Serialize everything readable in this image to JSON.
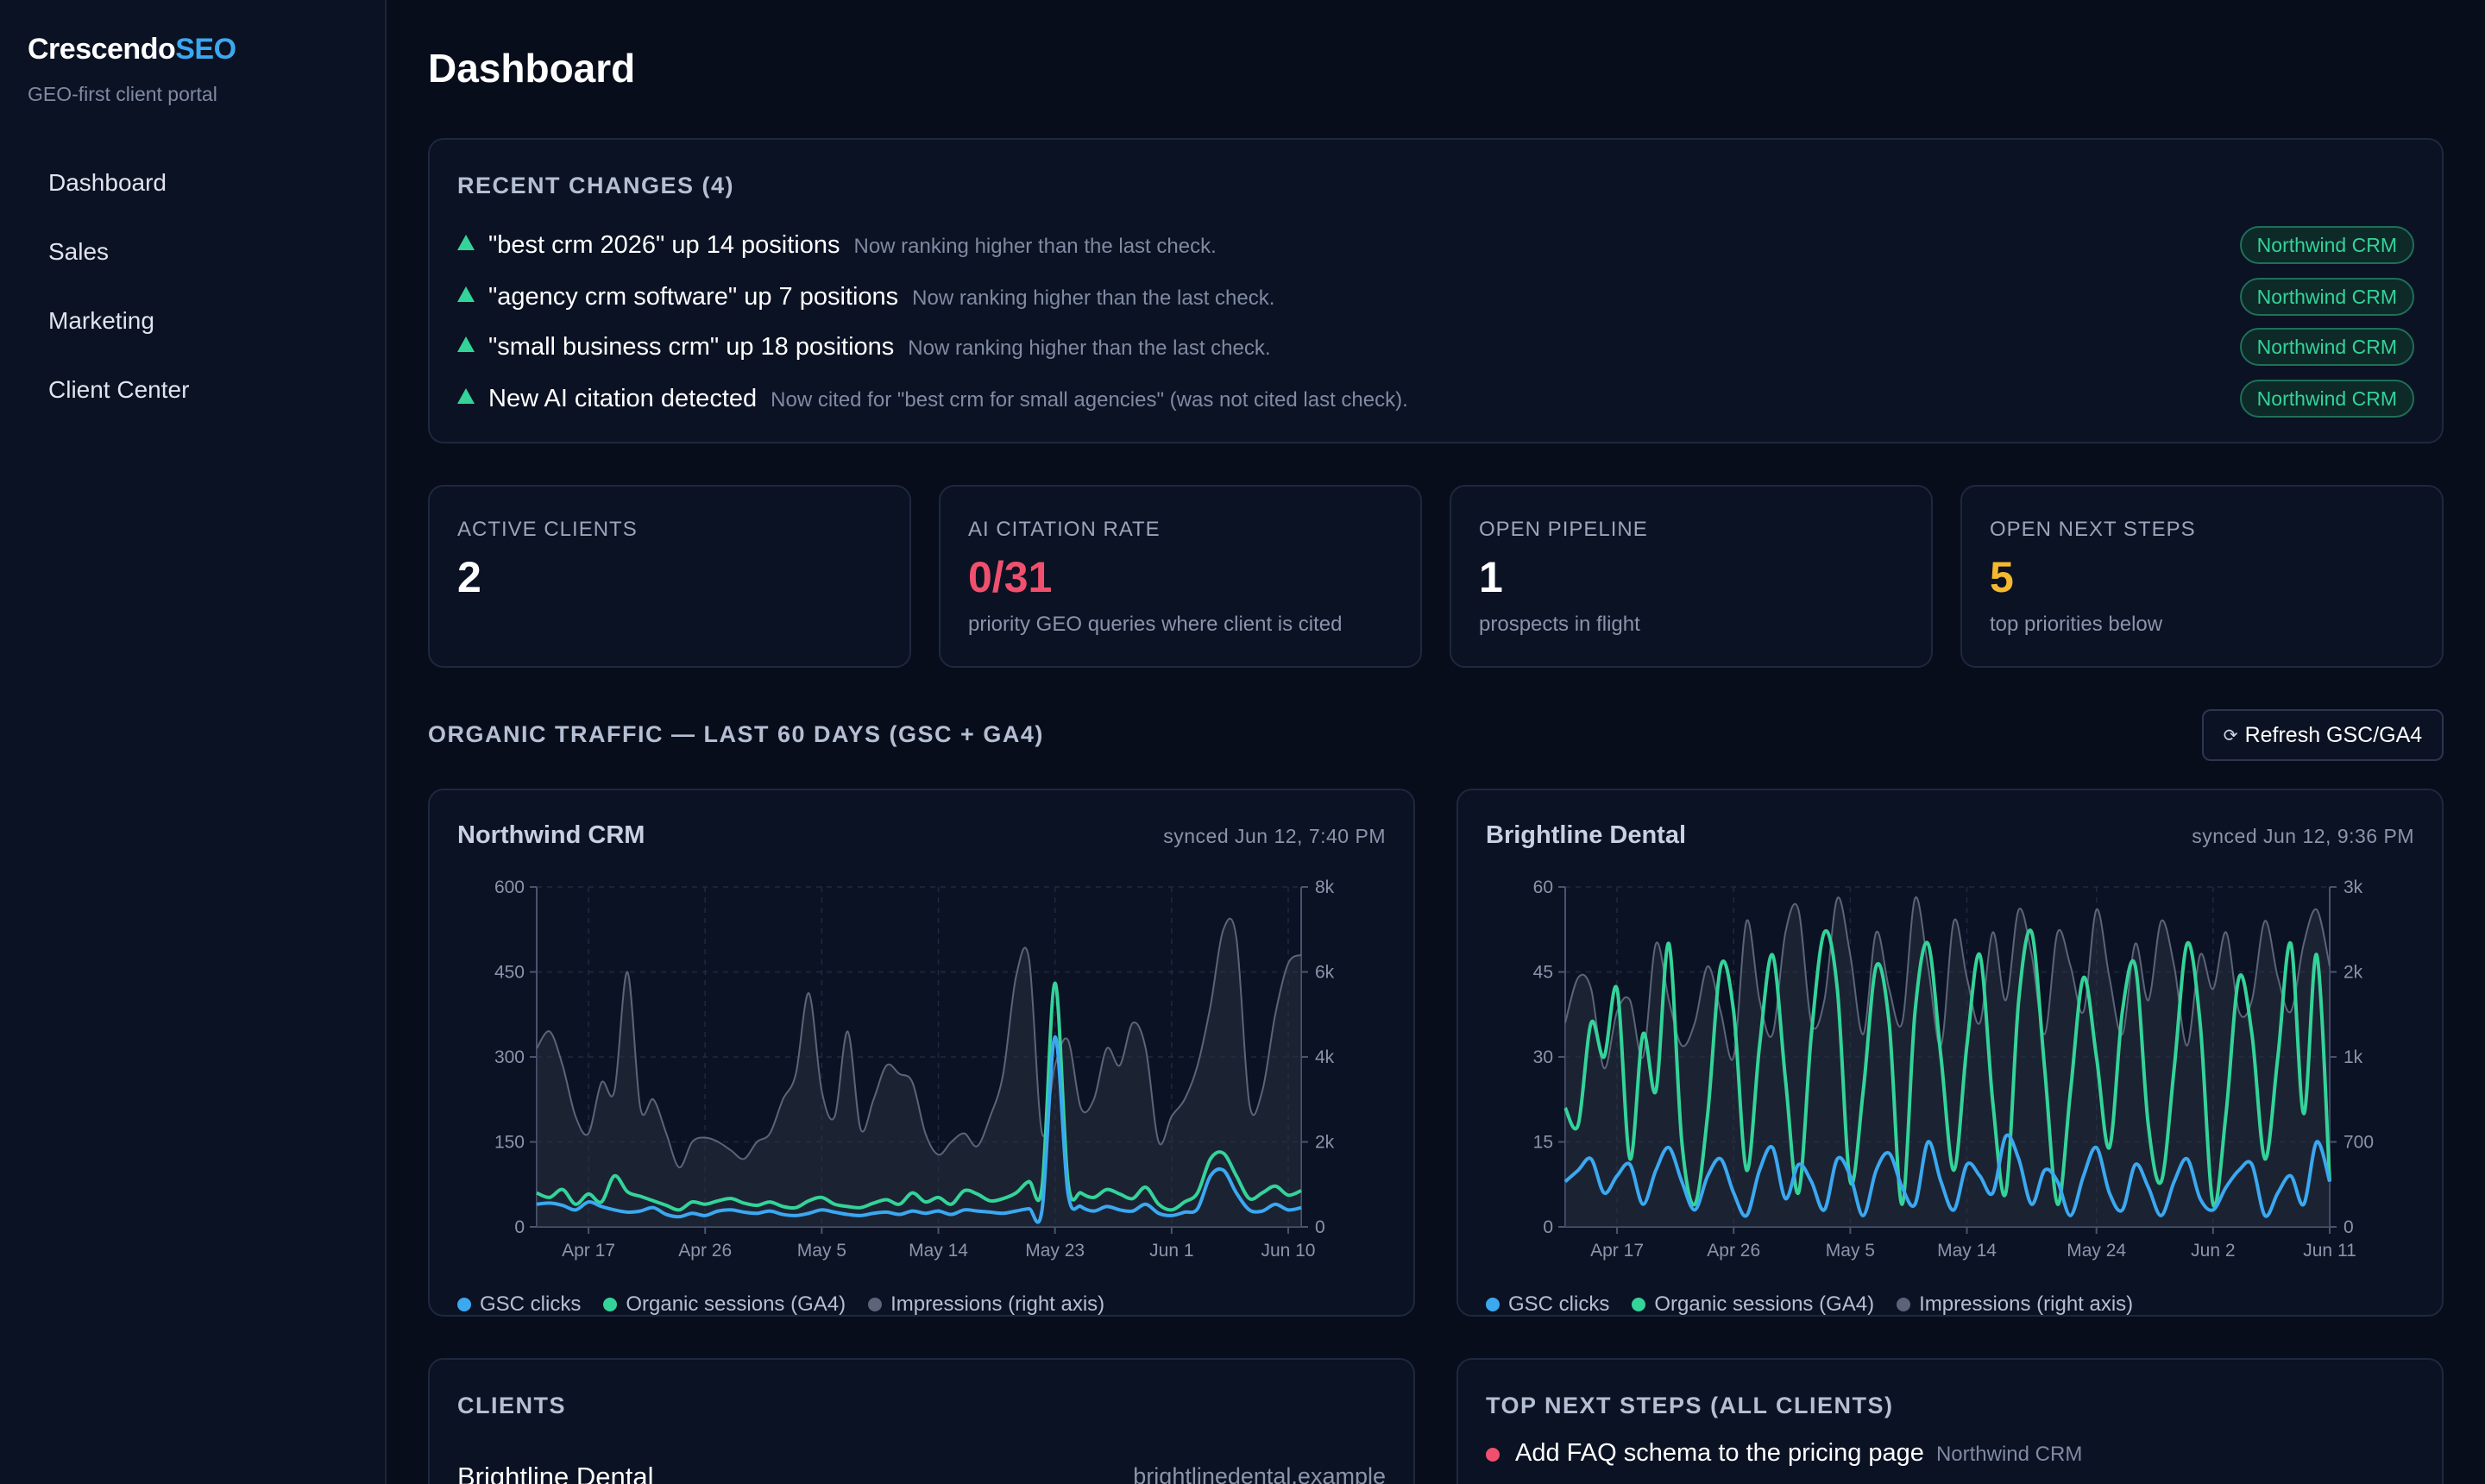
{
  "brand": {
    "name_primary": "Crescendo",
    "name_accent": "SEO",
    "tagline": "GEO-first client portal",
    "accent_color": "#3ba8f0"
  },
  "nav": {
    "items": [
      {
        "label": "Dashboard"
      },
      {
        "label": "Sales"
      },
      {
        "label": "Marketing"
      },
      {
        "label": "Client Center"
      }
    ]
  },
  "page": {
    "title": "Dashboard"
  },
  "recent_changes": {
    "title": "RECENT CHANGES (4)",
    "items": [
      {
        "icon": "up-triangle-icon",
        "title": "\"best crm 2026\" up 14 positions",
        "desc": "Now ranking higher than the last check.",
        "client": "Northwind CRM"
      },
      {
        "icon": "up-triangle-icon",
        "title": "\"agency crm software\" up 7 positions",
        "desc": "Now ranking higher than the last check.",
        "client": "Northwind CRM"
      },
      {
        "icon": "up-triangle-icon",
        "title": "\"small business crm\" up 18 positions",
        "desc": "Now ranking higher than the last check.",
        "client": "Northwind CRM"
      },
      {
        "icon": "up-triangle-icon",
        "title": "New AI citation detected",
        "desc": "Now cited for \"best crm for small agencies\" (was not cited last check).",
        "client": "Northwind CRM"
      }
    ]
  },
  "stats": [
    {
      "label": "ACTIVE CLIENTS",
      "value": "2",
      "sub": "",
      "color": "#ffffff"
    },
    {
      "label": "AI CITATION RATE",
      "value": "0/31",
      "sub": "priority GEO queries where client is cited",
      "color": "#f0506e"
    },
    {
      "label": "OPEN PIPELINE",
      "value": "1",
      "sub": "prospects in flight",
      "color": "#ffffff"
    },
    {
      "label": "OPEN NEXT STEPS",
      "value": "5",
      "sub": "top priorities below",
      "color": "#f5b82e"
    }
  ],
  "traffic": {
    "title": "ORGANIC TRAFFIC — LAST 60 DAYS (GSC + GA4)",
    "refresh_label": "Refresh GSC/GA4",
    "refresh_icon": "refresh-icon"
  },
  "colors": {
    "gsc": "#3ba8f0",
    "ga4": "#34d399",
    "impressions": "#5b6478"
  },
  "charts": [
    {
      "name": "Northwind CRM",
      "synced": "synced Jun 12, 7:40 PM",
      "legend": [
        "GSC clicks",
        "Organic sessions (GA4)",
        "Impressions (right axis)"
      ]
    },
    {
      "name": "Brightline Dental",
      "synced": "synced Jun 12, 9:36 PM",
      "legend": [
        "GSC clicks",
        "Organic sessions (GA4)",
        "Impressions (right axis)"
      ]
    }
  ],
  "chart_data": [
    {
      "type": "line",
      "title": "Northwind CRM",
      "x": [
        "Apr 13",
        "Apr 14",
        "Apr 15",
        "Apr 16",
        "Apr 17",
        "Apr 18",
        "Apr 19",
        "Apr 20",
        "Apr 21",
        "Apr 22",
        "Apr 23",
        "Apr 24",
        "Apr 25",
        "Apr 26",
        "Apr 27",
        "Apr 28",
        "Apr 29",
        "Apr 30",
        "May 1",
        "May 2",
        "May 3",
        "May 4",
        "May 5",
        "May 6",
        "May 7",
        "May 8",
        "May 9",
        "May 10",
        "May 11",
        "May 12",
        "May 13",
        "May 14",
        "May 15",
        "May 16",
        "May 17",
        "May 18",
        "May 19",
        "May 20",
        "May 21",
        "May 22",
        "May 23",
        "May 24",
        "May 25",
        "May 26",
        "May 27",
        "May 28",
        "May 29",
        "May 30",
        "May 31",
        "Jun 1",
        "Jun 2",
        "Jun 3",
        "Jun 4",
        "Jun 5",
        "Jun 6",
        "Jun 7",
        "Jun 8",
        "Jun 9",
        "Jun 10",
        "Jun 11"
      ],
      "x_ticks": [
        "Apr 17",
        "Apr 26",
        "May 5",
        "May 14",
        "May 23",
        "Jun 1",
        "Jun 10"
      ],
      "ylim": [
        0,
        600
      ],
      "y_ticks": [
        0,
        150,
        300,
        450,
        600
      ],
      "y2lim": [
        0,
        8000
      ],
      "y2_ticks": [
        "0",
        "2k",
        "4k",
        "6k",
        "8k"
      ],
      "series": [
        {
          "name": "GSC clicks",
          "axis": "left",
          "values": [
            40,
            42,
            38,
            30,
            44,
            36,
            30,
            26,
            28,
            34,
            22,
            18,
            24,
            20,
            28,
            30,
            26,
            24,
            28,
            22,
            20,
            24,
            30,
            26,
            22,
            20,
            24,
            26,
            22,
            28,
            24,
            28,
            22,
            30,
            28,
            26,
            24,
            28,
            32,
            30,
            335,
            60,
            36,
            28,
            36,
            30,
            28,
            40,
            24,
            20,
            26,
            32,
            90,
            100,
            60,
            30,
            28,
            40,
            30,
            34
          ]
        },
        {
          "name": "Organic sessions (GA4)",
          "axis": "left",
          "values": [
            60,
            52,
            66,
            40,
            58,
            44,
            90,
            62,
            54,
            46,
            38,
            30,
            44,
            40,
            46,
            50,
            42,
            38,
            44,
            36,
            34,
            46,
            52,
            40,
            36,
            34,
            42,
            48,
            40,
            60,
            44,
            52,
            40,
            64,
            58,
            46,
            50,
            60,
            80,
            70,
            430,
            80,
            60,
            52,
            66,
            58,
            50,
            70,
            40,
            30,
            44,
            60,
            120,
            130,
            90,
            50,
            60,
            72,
            56,
            64
          ]
        },
        {
          "name": "Impressions (right axis)",
          "axis": "right",
          "values": [
            4200,
            4600,
            3800,
            2600,
            2200,
            3400,
            3200,
            6000,
            2800,
            3000,
            2200,
            1400,
            2000,
            2100,
            2000,
            1800,
            1600,
            2000,
            2200,
            3000,
            3600,
            5500,
            3200,
            2600,
            4600,
            2300,
            3000,
            3800,
            3600,
            3400,
            2200,
            1700,
            2000,
            2200,
            1900,
            2600,
            3600,
            5900,
            6300,
            2200,
            3800,
            4400,
            2800,
            3000,
            4200,
            3800,
            4800,
            4200,
            2000,
            2600,
            3000,
            3800,
            5200,
            7000,
            6800,
            2900,
            3200,
            5000,
            6200,
            6400
          ]
        }
      ]
    },
    {
      "type": "line",
      "title": "Brightline Dental",
      "x": [
        "Apr 13",
        "Apr 14",
        "Apr 15",
        "Apr 16",
        "Apr 17",
        "Apr 18",
        "Apr 19",
        "Apr 20",
        "Apr 21",
        "Apr 22",
        "Apr 23",
        "Apr 24",
        "Apr 25",
        "Apr 26",
        "Apr 27",
        "Apr 28",
        "Apr 29",
        "Apr 30",
        "May 1",
        "May 2",
        "May 3",
        "May 4",
        "May 5",
        "May 6",
        "May 7",
        "May 8",
        "May 9",
        "May 10",
        "May 11",
        "May 12",
        "May 13",
        "May 14",
        "May 15",
        "May 16",
        "May 17",
        "May 18",
        "May 19",
        "May 20",
        "May 21",
        "May 22",
        "May 23",
        "May 24",
        "May 25",
        "May 26",
        "May 27",
        "May 28",
        "May 29",
        "May 30",
        "May 31",
        "Jun 1",
        "Jun 2",
        "Jun 3",
        "Jun 4",
        "Jun 5",
        "Jun 6",
        "Jun 7",
        "Jun 8",
        "Jun 9",
        "Jun 10",
        "Jun 11"
      ],
      "x_ticks": [
        "Apr 17",
        "Apr 26",
        "May 5",
        "May 14",
        "May 24",
        "Jun 2",
        "Jun 11"
      ],
      "ylim": [
        0,
        60
      ],
      "y_ticks": [
        0,
        15,
        30,
        45,
        60
      ],
      "y2lim": [
        0,
        3000
      ],
      "y2_ticks": [
        "0",
        "700",
        "1k",
        "2k",
        "3k"
      ],
      "series": [
        {
          "name": "GSC clicks",
          "axis": "left",
          "values": [
            8,
            10,
            12,
            6,
            9,
            11,
            4,
            10,
            14,
            8,
            3,
            9,
            12,
            6,
            2,
            10,
            14,
            5,
            11,
            8,
            3,
            12,
            9,
            2,
            10,
            13,
            7,
            4,
            15,
            8,
            3,
            11,
            9,
            6,
            16,
            12,
            4,
            10,
            8,
            2,
            9,
            14,
            6,
            3,
            11,
            7,
            2,
            8,
            12,
            5,
            3,
            7,
            10,
            11,
            2,
            6,
            9,
            4,
            15,
            8
          ]
        },
        {
          "name": "Organic sessions (GA4)",
          "axis": "left",
          "values": [
            21,
            18,
            36,
            30,
            42,
            12,
            34,
            24,
            50,
            15,
            4,
            20,
            46,
            38,
            10,
            32,
            48,
            26,
            6,
            34,
            52,
            42,
            8,
            24,
            46,
            36,
            4,
            38,
            50,
            30,
            10,
            32,
            48,
            22,
            6,
            40,
            52,
            28,
            4,
            24,
            44,
            30,
            14,
            38,
            46,
            18,
            8,
            28,
            50,
            36,
            4,
            20,
            44,
            34,
            12,
            30,
            50,
            20,
            48,
            8
          ]
        },
        {
          "name": "Impressions (right axis)",
          "axis": "right",
          "values": [
            1800,
            2200,
            2100,
            1400,
            1900,
            2000,
            1500,
            2500,
            2000,
            1600,
            1800,
            2300,
            1900,
            1500,
            2700,
            2000,
            1700,
            2600,
            2800,
            1800,
            2000,
            2900,
            2400,
            1700,
            2600,
            2100,
            1800,
            2900,
            2300,
            1600,
            2700,
            2200,
            1800,
            2600,
            2000,
            2800,
            2400,
            1700,
            2600,
            2300,
            1900,
            2800,
            2200,
            1700,
            2500,
            2000,
            2700,
            2300,
            1600,
            2400,
            2100,
            2600,
            1900,
            2000,
            2700,
            2200,
            1900,
            2500,
            2800,
            2300
          ]
        }
      ]
    }
  ],
  "clients": {
    "title": "CLIENTS",
    "first_name": "Brightline Dental",
    "first_domain": "brightlinedental.example"
  },
  "next_steps": {
    "title": "TOP NEXT STEPS (ALL CLIENTS)",
    "first_step": "Add FAQ schema to the pricing page",
    "first_client": "Northwind CRM",
    "priority_color": "#f0506e"
  }
}
